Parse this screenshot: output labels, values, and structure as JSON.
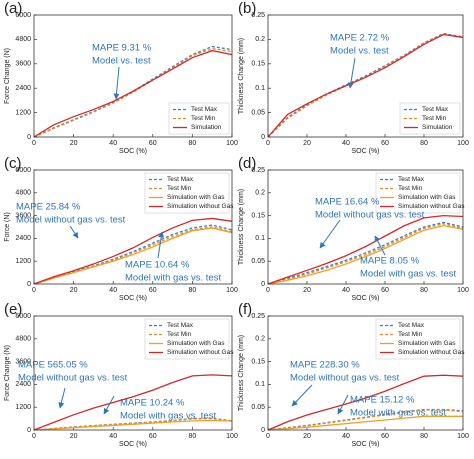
{
  "chart_data": [
    {
      "type": "line",
      "panel_label": "(a)",
      "xlabel": "SOC (%)",
      "ylabel": "Force Change (N)",
      "xlim": [
        0,
        100
      ],
      "ylim": [
        0,
        6000
      ],
      "xticks": [
        0,
        20,
        40,
        60,
        80,
        100
      ],
      "yticks": [
        0,
        1200,
        2400,
        3600,
        4800,
        6000
      ],
      "legend": "lower right",
      "x": [
        0,
        10,
        20,
        30,
        40,
        50,
        60,
        70,
        80,
        90,
        100
      ],
      "series": [
        {
          "name": "Test Max",
          "color": "#3b7fc4",
          "style": "dashed",
          "values": [
            0,
            450,
            850,
            1250,
            1700,
            2250,
            2850,
            3450,
            4050,
            4450,
            4300
          ]
        },
        {
          "name": "Test Min",
          "color": "#e08a2c",
          "style": "dashed",
          "values": [
            0,
            420,
            820,
            1220,
            1670,
            2200,
            2800,
            3400,
            4000,
            4350,
            4200
          ]
        },
        {
          "name": "Simulation",
          "color": "#d62728",
          "style": "solid",
          "values": [
            0,
            600,
            1000,
            1350,
            1750,
            2250,
            2800,
            3350,
            3900,
            4250,
            4050
          ]
        }
      ],
      "annotations": [
        [
          "MAPE 9.31 %",
          "Model vs. test"
        ]
      ]
    },
    {
      "type": "line",
      "panel_label": "(b)",
      "xlabel": "SOC (%)",
      "ylabel": "Thickness Change (mm)",
      "xlim": [
        0,
        100
      ],
      "ylim": [
        0,
        0.25
      ],
      "xticks": [
        0,
        20,
        40,
        60,
        80,
        100
      ],
      "yticks": [
        0,
        0.05,
        0.1,
        0.15,
        0.2,
        0.25
      ],
      "legend": "lower right",
      "x": [
        0,
        10,
        20,
        30,
        40,
        50,
        60,
        70,
        80,
        90,
        100
      ],
      "series": [
        {
          "name": "Test Max",
          "color": "#3b7fc4",
          "style": "dashed",
          "values": [
            0,
            0.04,
            0.066,
            0.088,
            0.107,
            0.125,
            0.146,
            0.168,
            0.193,
            0.212,
            0.205
          ]
        },
        {
          "name": "Test Min",
          "color": "#e08a2c",
          "style": "dashed",
          "values": [
            0,
            0.038,
            0.064,
            0.086,
            0.105,
            0.123,
            0.144,
            0.167,
            0.192,
            0.211,
            0.204
          ]
        },
        {
          "name": "Simulation",
          "color": "#d62728",
          "style": "solid",
          "values": [
            0,
            0.046,
            0.068,
            0.088,
            0.105,
            0.122,
            0.142,
            0.165,
            0.19,
            0.21,
            0.204
          ]
        }
      ],
      "annotations": [
        [
          "MAPE 2.72 %",
          "Model vs. test"
        ]
      ]
    },
    {
      "type": "line",
      "panel_label": "(c)",
      "xlabel": "SOC (%)",
      "ylabel": "Force (N)",
      "xlim": [
        0,
        100
      ],
      "ylim": [
        0,
        6000
      ],
      "xticks": [
        0,
        20,
        40,
        60,
        80,
        100
      ],
      "yticks": [
        0,
        1200,
        2400,
        3600,
        4800,
        6000
      ],
      "legend": "upper right",
      "x": [
        0,
        10,
        20,
        30,
        40,
        50,
        60,
        70,
        80,
        90,
        100
      ],
      "series": [
        {
          "name": "Test Max",
          "color": "#3b7fc4",
          "style": "dashed",
          "values": [
            0,
            350,
            650,
            950,
            1300,
            1700,
            2150,
            2600,
            2950,
            3100,
            2850
          ]
        },
        {
          "name": "Test Min",
          "color": "#e08a2c",
          "style": "dashed",
          "values": [
            0,
            320,
            620,
            920,
            1250,
            1650,
            2050,
            2500,
            2850,
            3000,
            2750
          ]
        },
        {
          "name": "Simulation with Gas",
          "color": "#f0a020",
          "style": "solid",
          "values": [
            0,
            300,
            600,
            900,
            1200,
            1550,
            1950,
            2400,
            2800,
            2950,
            2700
          ]
        },
        {
          "name": "Simulation without Gas",
          "color": "#d62728",
          "style": "solid",
          "values": [
            0,
            380,
            700,
            1050,
            1450,
            1900,
            2450,
            2950,
            3350,
            3450,
            3300
          ]
        }
      ],
      "annotations": [
        [
          "MAPE 25.84 %",
          "Model without gas vs. test"
        ],
        [
          "MAPE 10.64 %",
          "Model with gas vs. test"
        ]
      ]
    },
    {
      "type": "line",
      "panel_label": "(d)",
      "xlabel": "SOC (%)",
      "ylabel": "Thickness Change (mm)",
      "xlim": [
        0,
        100
      ],
      "ylim": [
        0,
        0.25
      ],
      "xticks": [
        0,
        20,
        40,
        60,
        80,
        100
      ],
      "yticks": [
        0,
        0.05,
        0.1,
        0.15,
        0.2,
        0.25
      ],
      "legend": "upper right",
      "x": [
        0,
        10,
        20,
        30,
        40,
        50,
        60,
        70,
        80,
        90,
        100
      ],
      "series": [
        {
          "name": "Test Max",
          "color": "#3b7fc4",
          "style": "dashed",
          "values": [
            0,
            0.012,
            0.025,
            0.038,
            0.052,
            0.068,
            0.086,
            0.106,
            0.125,
            0.135,
            0.125
          ]
        },
        {
          "name": "Test Min",
          "color": "#e08a2c",
          "style": "dashed",
          "values": [
            0,
            0.01,
            0.022,
            0.035,
            0.049,
            0.064,
            0.082,
            0.102,
            0.122,
            0.132,
            0.122
          ]
        },
        {
          "name": "Simulation with Gas",
          "color": "#f0a020",
          "style": "solid",
          "values": [
            0,
            0.008,
            0.018,
            0.03,
            0.044,
            0.06,
            0.078,
            0.098,
            0.118,
            0.128,
            0.12
          ]
        },
        {
          "name": "Simulation without Gas",
          "color": "#d62728",
          "style": "solid",
          "values": [
            0,
            0.015,
            0.03,
            0.045,
            0.062,
            0.082,
            0.105,
            0.128,
            0.145,
            0.15,
            0.148
          ]
        }
      ],
      "annotations": [
        [
          "MAPE 16.64 %",
          "Model without gas vs. test"
        ],
        [
          "MAPE 8.05 %",
          "Model with gas vs. test"
        ]
      ]
    },
    {
      "type": "line",
      "panel_label": "(e)",
      "xlabel": "SOC (%)",
      "ylabel": "Force Change (N)",
      "xlim": [
        0,
        100
      ],
      "ylim": [
        0,
        6000
      ],
      "xticks": [
        0,
        20,
        40,
        60,
        80,
        100
      ],
      "yticks": [
        0,
        1200,
        2400,
        3600,
        4800,
        6000
      ],
      "legend": "upper right",
      "x": [
        0,
        10,
        20,
        30,
        40,
        50,
        60,
        70,
        80,
        90,
        100
      ],
      "series": [
        {
          "name": "Test Max",
          "color": "#3b7fc4",
          "style": "dashed",
          "values": [
            0,
            80,
            160,
            230,
            300,
            360,
            420,
            500,
            600,
            620,
            480
          ]
        },
        {
          "name": "Test Min",
          "color": "#e08a2c",
          "style": "dashed",
          "values": [
            0,
            70,
            150,
            220,
            290,
            350,
            410,
            490,
            580,
            600,
            460
          ]
        },
        {
          "name": "Simulation with Gas",
          "color": "#f0a020",
          "style": "solid",
          "values": [
            0,
            60,
            120,
            180,
            240,
            300,
            360,
            420,
            480,
            500,
            480
          ]
        },
        {
          "name": "Simulation without Gas",
          "color": "#d62728",
          "style": "solid",
          "values": [
            0,
            400,
            800,
            1150,
            1450,
            1750,
            2100,
            2500,
            2850,
            2900,
            2850
          ]
        }
      ],
      "annotations": [
        [
          "MAPE 565.05 %",
          "Model without gas vs. test"
        ],
        [
          "MAPE 10.24 %",
          "Model with gas vs. test"
        ]
      ]
    },
    {
      "type": "line",
      "panel_label": "(f)",
      "xlabel": "SOC (%)",
      "ylabel": "Thickness Change (mm)",
      "xlim": [
        0,
        100
      ],
      "ylim": [
        0,
        0.25
      ],
      "xticks": [
        0,
        20,
        40,
        60,
        80,
        100
      ],
      "yticks": [
        0,
        0.05,
        0.1,
        0.15,
        0.2,
        0.25
      ],
      "legend": "upper right",
      "x": [
        0,
        10,
        20,
        30,
        40,
        50,
        60,
        70,
        80,
        90,
        100
      ],
      "series": [
        {
          "name": "Test Max",
          "color": "#3b7fc4",
          "style": "dashed",
          "values": [
            0,
            0.005,
            0.01,
            0.016,
            0.022,
            0.028,
            0.034,
            0.04,
            0.045,
            0.045,
            0.042
          ]
        },
        {
          "name": "Test Min",
          "color": "#e08a2c",
          "style": "dashed",
          "values": [
            0,
            0.004,
            0.009,
            0.015,
            0.021,
            0.027,
            0.033,
            0.039,
            0.044,
            0.044,
            0.04
          ]
        },
        {
          "name": "Simulation with Gas",
          "color": "#f0a020",
          "style": "solid",
          "values": [
            0,
            0.003,
            0.006,
            0.01,
            0.014,
            0.018,
            0.022,
            0.026,
            0.03,
            0.03,
            0.03
          ]
        },
        {
          "name": "Simulation without Gas",
          "color": "#d62728",
          "style": "solid",
          "values": [
            0,
            0.018,
            0.033,
            0.045,
            0.057,
            0.07,
            0.085,
            0.102,
            0.118,
            0.12,
            0.118
          ]
        }
      ],
      "annotations": [
        [
          "MAPE 228.30 %",
          "Model without gas vs. test"
        ],
        [
          "MAPE 15.12 %",
          "Model with gas vs. test"
        ]
      ]
    }
  ]
}
